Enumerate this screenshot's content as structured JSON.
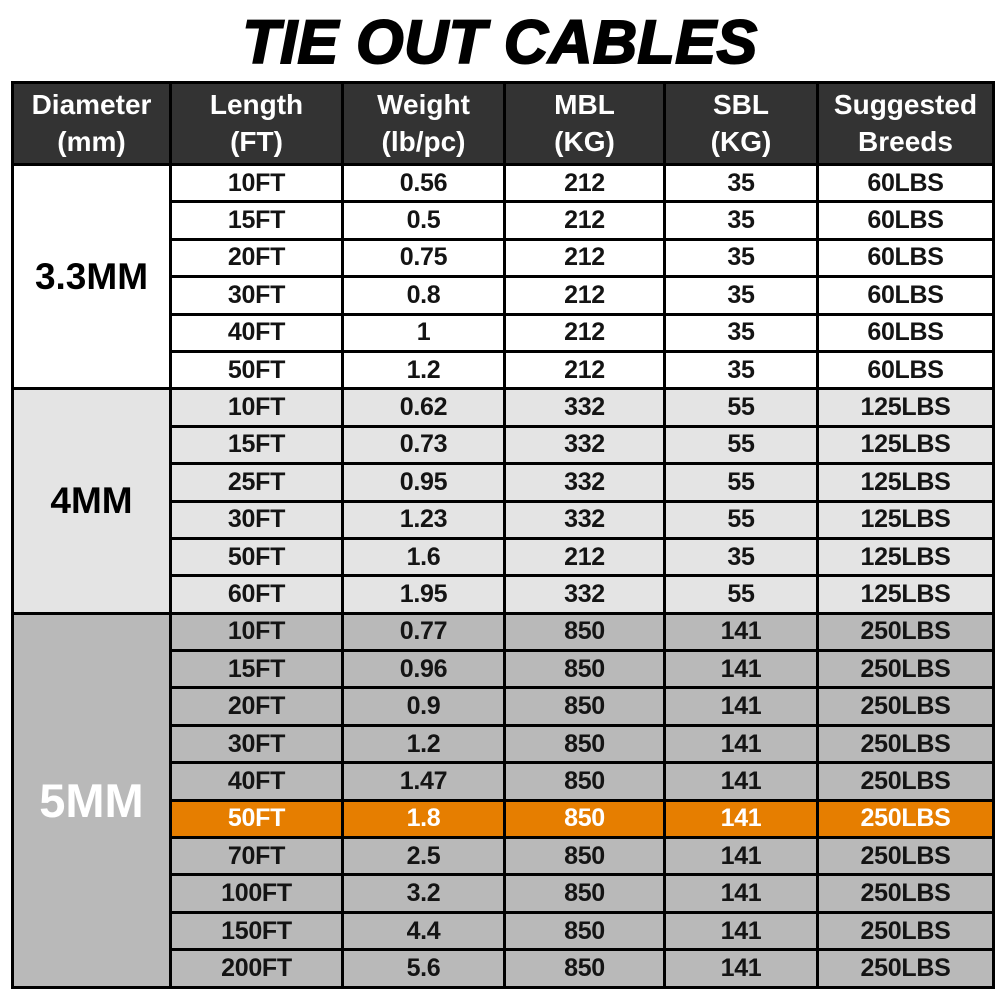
{
  "title": "TIE OUT CABLES",
  "colors": {
    "header_bg": "#333333",
    "header_text": "#ffffff",
    "border": "#000000",
    "text": "#141414",
    "accent_orange": "#e67e00",
    "highlight_text": "#ffffff",
    "section1_cell": "#f0f0f0",
    "section1_row": "#ffffff",
    "section2_cell": "#d0d0d0",
    "section2_row": "#e4e4e4",
    "section3_row": "#b9b9b9"
  },
  "chart_data": {
    "type": "table",
    "title": "TIE OUT CABLES",
    "columns": [
      {
        "line1": "Diameter",
        "line2": "(mm)"
      },
      {
        "line1": "Length",
        "line2": "(FT)"
      },
      {
        "line1": "Weight",
        "line2": "(lb/pc)"
      },
      {
        "line1": "MBL",
        "line2": "(KG)"
      },
      {
        "line1": "SBL",
        "line2": "(KG)"
      },
      {
        "line1": "Suggested",
        "line2": "Breeds"
      }
    ],
    "sections": [
      {
        "diameter": "3.3MM",
        "rows": [
          [
            "10FT",
            "0.56",
            "212",
            "35",
            "60LBS"
          ],
          [
            "15FT",
            "0.5",
            "212",
            "35",
            "60LBS"
          ],
          [
            "20FT",
            "0.75",
            "212",
            "35",
            "60LBS"
          ],
          [
            "30FT",
            "0.8",
            "212",
            "35",
            "60LBS"
          ],
          [
            "40FT",
            "1",
            "212",
            "35",
            "60LBS"
          ],
          [
            "50FT",
            "1.2",
            "212",
            "35",
            "60LBS"
          ]
        ]
      },
      {
        "diameter": "4MM",
        "rows": [
          [
            "10FT",
            "0.62",
            "332",
            "55",
            "125LBS"
          ],
          [
            "15FT",
            "0.73",
            "332",
            "55",
            "125LBS"
          ],
          [
            "25FT",
            "0.95",
            "332",
            "55",
            "125LBS"
          ],
          [
            "30FT",
            "1.23",
            "332",
            "55",
            "125LBS"
          ],
          [
            "50FT",
            "1.6",
            "212",
            "35",
            "125LBS"
          ],
          [
            "60FT",
            "1.95",
            "332",
            "55",
            "125LBS"
          ]
        ]
      },
      {
        "diameter": "5MM",
        "highlight_row_index": 5,
        "rows": [
          [
            "10FT",
            "0.77",
            "850",
            "141",
            "250LBS"
          ],
          [
            "15FT",
            "0.96",
            "850",
            "141",
            "250LBS"
          ],
          [
            "20FT",
            "0.9",
            "850",
            "141",
            "250LBS"
          ],
          [
            "30FT",
            "1.2",
            "850",
            "141",
            "250LBS"
          ],
          [
            "40FT",
            "1.47",
            "850",
            "141",
            "250LBS"
          ],
          [
            "50FT",
            "1.8",
            "850",
            "141",
            "250LBS"
          ],
          [
            "70FT",
            "2.5",
            "850",
            "141",
            "250LBS"
          ],
          [
            "100FT",
            "3.2",
            "850",
            "141",
            "250LBS"
          ],
          [
            "150FT",
            "4.4",
            "850",
            "141",
            "250LBS"
          ],
          [
            "200FT",
            "5.6",
            "850",
            "141",
            "250LBS"
          ]
        ]
      }
    ]
  }
}
